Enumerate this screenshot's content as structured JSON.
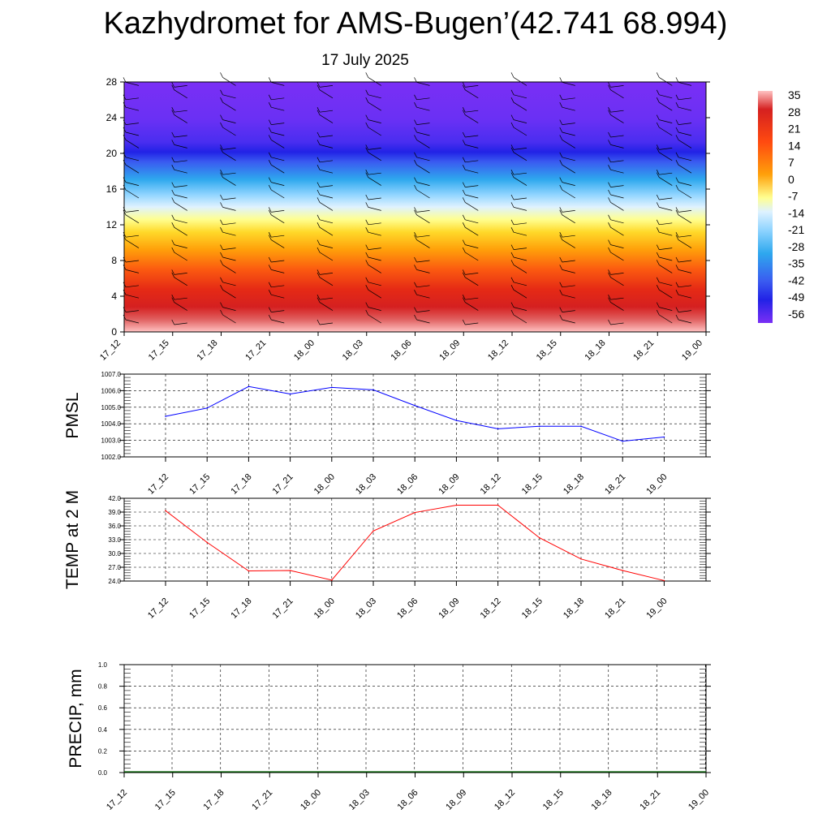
{
  "title": "Kazhydromet for AMS-Bugen’(42.741 68.994)",
  "subtitle": "17 July 2025",
  "chart_data": [
    {
      "type": "heatmap",
      "name": "height-time temperature section",
      "yticks": [
        0,
        4,
        8,
        12,
        16,
        20,
        24,
        28
      ],
      "ylim": [
        0,
        28
      ],
      "xticks": [
        "17_12",
        "17_15",
        "17_18",
        "17_21",
        "18_00",
        "18_03",
        "18_06",
        "18_09",
        "18_12",
        "18_15",
        "18_18",
        "18_21",
        "19_00"
      ],
      "colorbar": {
        "labels": [
          "35",
          "28",
          "21",
          "14",
          "7",
          "0",
          "-7",
          "-14",
          "-21",
          "-28",
          "-35",
          "-42",
          "-49",
          "-56"
        ],
        "range": [
          -60,
          38
        ]
      },
      "wind_barbs": true
    },
    {
      "type": "line",
      "ylabel": "PMSL",
      "ylim": [
        1002.0,
        1007.0
      ],
      "yticks": [
        "1002.0",
        "1003.0",
        "1004.0",
        "1005.0",
        "1006.0",
        "1007.0"
      ],
      "categories": [
        "17_12",
        "17_15",
        "17_18",
        "17_21",
        "18_00",
        "18_03",
        "18_06",
        "18_09",
        "18_12",
        "18_15",
        "18_18",
        "18_21",
        "19_00"
      ],
      "color": "#0000ff",
      "values": [
        1004.45,
        1004.95,
        1006.25,
        1005.8,
        1006.2,
        1006.05,
        1005.1,
        1004.2,
        1003.7,
        1003.85,
        1003.85,
        1002.95,
        1003.2
      ]
    },
    {
      "type": "line",
      "ylabel": "TEMP at 2 M",
      "ylim": [
        24.0,
        42.0
      ],
      "yticks": [
        "24.0",
        "27.0",
        "30.0",
        "33.0",
        "36.0",
        "39.0",
        "42.0"
      ],
      "categories": [
        "17_12",
        "17_15",
        "17_18",
        "17_21",
        "18_00",
        "18_03",
        "18_06",
        "18_09",
        "18_12",
        "18_15",
        "18_18",
        "18_21",
        "19_00"
      ],
      "color": "#ff0000",
      "values": [
        39.3,
        32.4,
        26.2,
        26.3,
        24.2,
        34.9,
        38.9,
        40.5,
        40.5,
        33.4,
        28.8,
        26.3,
        24.1
      ]
    },
    {
      "type": "line",
      "ylabel": "PRECIP, mm",
      "ylim": [
        0.0,
        1.0
      ],
      "yticks": [
        "0.0",
        "0.2",
        "0.4",
        "0.6",
        "0.8",
        "1.0"
      ],
      "categories": [
        "17_12",
        "17_15",
        "17_18",
        "17_21",
        "18_00",
        "18_03",
        "18_06",
        "18_09",
        "18_12",
        "18_15",
        "18_18",
        "18_21",
        "19_00"
      ],
      "color": "#006400",
      "values": [
        0,
        0,
        0,
        0,
        0,
        0,
        0,
        0,
        0,
        0,
        0,
        0,
        0
      ]
    }
  ]
}
